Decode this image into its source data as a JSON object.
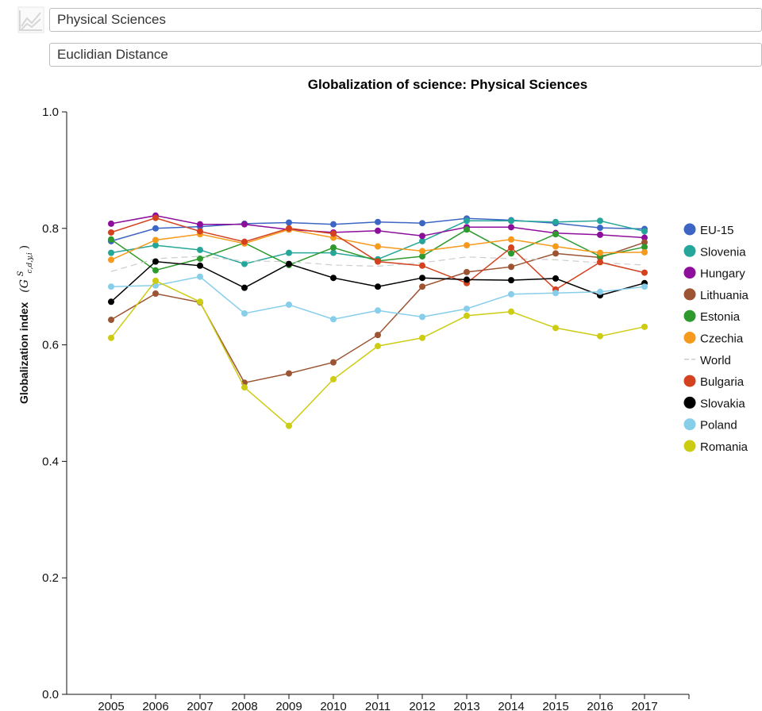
{
  "header": {
    "field_select": "Physical Sciences",
    "metric_select": "Euclidian Distance",
    "app_icon": "line-chart-icon"
  },
  "chart_data": {
    "type": "line",
    "title": "Globalization of science: Physical Sciences",
    "xlabel": "",
    "ylabel": "Globalization index",
    "ylabel_symbol": "(G",
    "ylabel_sup": "S",
    "ylabel_sub": "c,d,y,i",
    "ylabel_close": ")",
    "x": [
      2005,
      2006,
      2007,
      2008,
      2009,
      2010,
      2011,
      2012,
      2013,
      2014,
      2015,
      2016,
      2017
    ],
    "ylim": [
      0,
      1
    ],
    "yticks": [
      "0.0",
      "0.2",
      "0.4",
      "0.6",
      "0.8",
      "1.0"
    ],
    "grid": false,
    "legend_position": "right",
    "series": [
      {
        "name": "EU-15",
        "color": "#3d66c4",
        "values": [
          0.778,
          0.8,
          0.803,
          0.808,
          0.81,
          0.807,
          0.811,
          0.809,
          0.817,
          0.814,
          0.809,
          0.801,
          0.799
        ]
      },
      {
        "name": "Slovenia",
        "color": "#26a69a",
        "values": [
          0.758,
          0.771,
          0.763,
          0.739,
          0.758,
          0.758,
          0.747,
          0.778,
          0.813,
          0.813,
          0.811,
          0.813,
          0.795
        ]
      },
      {
        "name": "Hungary",
        "color": "#8e0e9c",
        "values": [
          0.808,
          0.822,
          0.807,
          0.807,
          0.798,
          0.793,
          0.796,
          0.787,
          0.802,
          0.802,
          0.792,
          0.789,
          0.784
        ]
      },
      {
        "name": "Lithuania",
        "color": "#9c5432",
        "values": [
          0.643,
          0.688,
          0.673,
          0.535,
          0.551,
          0.57,
          0.617,
          0.7,
          0.725,
          0.734,
          0.757,
          0.75,
          0.776
        ]
      },
      {
        "name": "Estonia",
        "color": "#2e9a2e",
        "values": [
          0.781,
          0.728,
          0.748,
          0.775,
          0.737,
          0.767,
          0.744,
          0.752,
          0.798,
          0.757,
          0.79,
          0.752,
          0.768
        ]
      },
      {
        "name": "Czechia",
        "color": "#f59a1c",
        "values": [
          0.746,
          0.78,
          0.79,
          0.774,
          0.798,
          0.784,
          0.769,
          0.761,
          0.771,
          0.781,
          0.769,
          0.758,
          0.759
        ]
      },
      {
        "name": "World",
        "color": "#cccccc",
        "dashed": true,
        "values": [
          0.726,
          0.748,
          0.752,
          0.744,
          0.743,
          0.737,
          0.735,
          0.741,
          0.751,
          0.748,
          0.746,
          0.741,
          0.737
        ]
      },
      {
        "name": "Bulgaria",
        "color": "#d3411f",
        "values": [
          0.793,
          0.818,
          0.795,
          0.777,
          0.8,
          0.791,
          0.743,
          0.736,
          0.706,
          0.767,
          0.695,
          0.742,
          0.724
        ]
      },
      {
        "name": "Slovakia",
        "color": "#000000",
        "values": [
          0.674,
          0.743,
          0.736,
          0.698,
          0.739,
          0.715,
          0.7,
          0.715,
          0.712,
          0.711,
          0.714,
          0.685,
          0.706
        ]
      },
      {
        "name": "Poland",
        "color": "#87ceeb",
        "values": [
          0.7,
          0.702,
          0.717,
          0.654,
          0.669,
          0.644,
          0.659,
          0.648,
          0.662,
          0.687,
          0.689,
          0.691,
          0.7
        ]
      },
      {
        "name": "Romania",
        "color": "#cccc12",
        "values": [
          0.612,
          0.71,
          0.674,
          0.527,
          0.461,
          0.541,
          0.598,
          0.612,
          0.65,
          0.657,
          0.629,
          0.615,
          0.631
        ]
      }
    ]
  }
}
